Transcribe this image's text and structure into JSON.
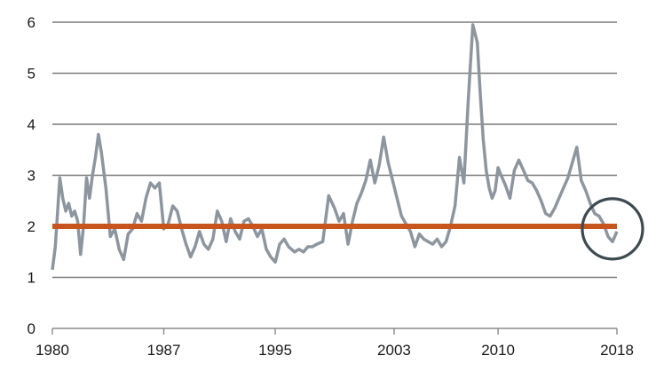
{
  "chart_data": {
    "type": "line",
    "title": "",
    "xlabel": "",
    "ylabel": "",
    "xlim": [
      1980,
      2018
    ],
    "ylim": [
      0,
      6
    ],
    "x_ticks": [
      {
        "value": 1980,
        "label": "1980"
      },
      {
        "value": 1987.5,
        "label": "1987"
      },
      {
        "value": 1995,
        "label": "1995"
      },
      {
        "value": 2003,
        "label": "2003"
      },
      {
        "value": 2010,
        "label": "2010"
      },
      {
        "value": 2018,
        "label": "2018"
      }
    ],
    "y_ticks": [
      0,
      1,
      2,
      3,
      4,
      5,
      6
    ],
    "grid": true,
    "series": [
      {
        "color": "#8d969f",
        "x": [
          1980.0,
          1980.2,
          1980.5,
          1980.7,
          1980.9,
          1981.1,
          1981.3,
          1981.5,
          1981.7,
          1981.9,
          1982.1,
          1982.3,
          1982.5,
          1982.7,
          1982.9,
          1983.1,
          1983.3,
          1983.6,
          1983.9,
          1984.2,
          1984.5,
          1984.8,
          1985.1,
          1985.4,
          1985.7,
          1986.0,
          1986.3,
          1986.6,
          1986.9,
          1987.2,
          1987.5,
          1987.8,
          1988.1,
          1988.4,
          1988.7,
          1989.0,
          1989.3,
          1989.6,
          1989.9,
          1990.2,
          1990.5,
          1990.8,
          1991.1,
          1991.4,
          1991.7,
          1992.0,
          1992.3,
          1992.6,
          1992.9,
          1993.2,
          1993.5,
          1993.8,
          1994.1,
          1994.4,
          1994.7,
          1995.0,
          1995.3,
          1995.6,
          1995.9,
          1996.3,
          1996.6,
          1996.9,
          1997.2,
          1997.5,
          1997.8,
          1998.2,
          1998.6,
          1999.0,
          1999.3,
          1999.6,
          1999.9,
          2000.2,
          2000.5,
          2000.8,
          2001.1,
          2001.4,
          2001.7,
          2002.0,
          2002.3,
          2002.6,
          2002.9,
          2003.2,
          2003.5,
          2003.8,
          2004.1,
          2004.4,
          2004.7,
          2005.0,
          2005.3,
          2005.6,
          2005.9,
          2006.2,
          2006.5,
          2006.8,
          2007.1,
          2007.4,
          2007.7,
          2008.0,
          2008.3,
          2008.6,
          2008.8,
          2009.0,
          2009.2,
          2009.4,
          2009.6,
          2009.8,
          2010.0,
          2010.2,
          2010.5,
          2010.8,
          2011.1,
          2011.4,
          2011.7,
          2012.0,
          2012.3,
          2012.6,
          2012.9,
          2013.2,
          2013.5,
          2013.8,
          2014.1,
          2014.4,
          2014.7,
          2015.0,
          2015.3,
          2015.6,
          2015.9,
          2016.2,
          2016.5,
          2016.8,
          2017.1,
          2017.4,
          2017.7,
          2018.0
        ],
        "values": [
          1.15,
          1.6,
          2.95,
          2.55,
          2.3,
          2.45,
          2.2,
          2.3,
          2.1,
          1.45,
          2.0,
          2.95,
          2.55,
          3.0,
          3.35,
          3.8,
          3.45,
          2.75,
          1.8,
          1.95,
          1.55,
          1.35,
          1.85,
          1.95,
          2.25,
          2.1,
          2.55,
          2.85,
          2.75,
          2.85,
          1.95,
          2.05,
          2.4,
          2.3,
          1.95,
          1.65,
          1.4,
          1.6,
          1.9,
          1.65,
          1.55,
          1.75,
          2.3,
          2.1,
          1.7,
          2.15,
          1.9,
          1.75,
          2.1,
          2.15,
          2.0,
          1.8,
          1.95,
          1.55,
          1.4,
          1.3,
          1.65,
          1.75,
          1.6,
          1.5,
          1.55,
          1.5,
          1.6,
          1.6,
          1.65,
          1.7,
          2.6,
          2.35,
          2.1,
          2.25,
          1.65,
          2.1,
          2.45,
          2.65,
          2.9,
          3.3,
          2.85,
          3.2,
          3.75,
          3.25,
          2.9,
          2.55,
          2.2,
          2.05,
          1.9,
          1.6,
          1.85,
          1.75,
          1.7,
          1.65,
          1.75,
          1.6,
          1.7,
          2.0,
          2.4,
          3.35,
          2.85,
          4.5,
          5.95,
          5.6,
          4.6,
          3.7,
          3.1,
          2.75,
          2.55,
          2.7,
          3.15,
          3.0,
          2.8,
          2.55,
          3.1,
          3.3,
          3.1,
          2.9,
          2.85,
          2.7,
          2.5,
          2.25,
          2.2,
          2.35,
          2.55,
          2.75,
          2.95,
          3.25,
          3.55,
          2.9,
          2.7,
          2.45,
          2.25,
          2.2,
          2.05,
          1.8,
          1.7,
          1.9
        ]
      },
      {
        "color": "#c8541e",
        "x": [
          1980,
          2018
        ],
        "values": [
          2.0,
          2.0
        ]
      }
    ],
    "annotation": {
      "type": "circle",
      "x": 2017.7,
      "y": 1.95,
      "color": "#3d4a4f"
    }
  }
}
